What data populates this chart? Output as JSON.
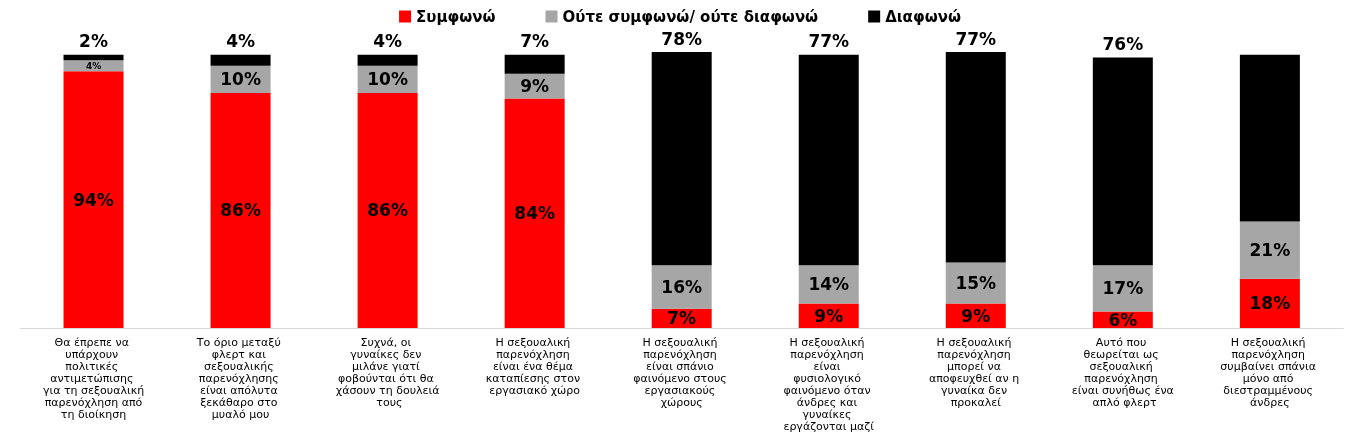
{
  "chart_data": {
    "type": "bar",
    "stacked": true,
    "legend": "top",
    "categories": [
      "Θα έπρεπε να υπάρχουν πολιτικές αντιμετώπισης για τη σεξουαλική παρενόχληση από τη διοίκηση",
      "Το όριο μεταξύ φλερτ και σεξουαλικής παρενόχλησης είναι απόλυτα ξεκάθαρο στο μυαλό μου",
      "Συχνά, οι γυναίκες δεν μιλάνε γιατί φοβούνται ότι θα χάσουν τη δουλειά τους",
      "Η σεξουαλική παρενόχληση είναι ένα θέμα καταπίεσης στον εργασιακό χώρο",
      "Η σεξουαλική παρενόχληση είναι σπάνιο φαινόμενο στους εργασιακούς χώρους",
      "Η σεξουαλική παρενόχληση είναι φυσιολογικό φαινόμενο όταν άνδρες και γυναίκες εργάζονται μαζί",
      "Η σεξουαλική παρενόχληση μπορεί να αποφευχθεί αν η γυναίκα δεν προκαλεί",
      "Αυτό που θεωρείται ως σεξουαλική παρενόχληση είναι συνήθως ένα απλό φλερτ",
      "Η σεξουαλική παρενόχληση συμβαίνει σπάνια μόνο από διεστραμμένους άνδρες"
    ],
    "series": [
      {
        "name": "Συμφωνώ",
        "color": "#ff0000",
        "values": [
          94,
          86,
          86,
          84,
          7,
          9,
          9,
          6,
          18
        ],
        "value_labels": [
          "94%",
          "86%",
          "86%",
          "84%",
          "7%",
          "9%",
          "9%",
          "6%",
          "18%"
        ]
      },
      {
        "name": "Ούτε συμφωνώ/ ούτε διαφωνώ",
        "color": "#a6a6a6",
        "values": [
          4,
          10,
          10,
          9,
          16,
          14,
          15,
          17,
          21
        ],
        "value_labels": [
          "4%",
          "10%",
          "10%",
          "9%",
          "16%",
          "14%",
          "15%",
          "17%",
          "21%"
        ]
      },
      {
        "name": "Διαφωνώ",
        "color": "#000000",
        "values": [
          2,
          4,
          4,
          7,
          78,
          77,
          77,
          76,
          61
        ],
        "value_labels": [
          "2%",
          "4%",
          "4%",
          "7%",
          "78%",
          "77%",
          "77%",
          "76%",
          null
        ]
      }
    ]
  }
}
